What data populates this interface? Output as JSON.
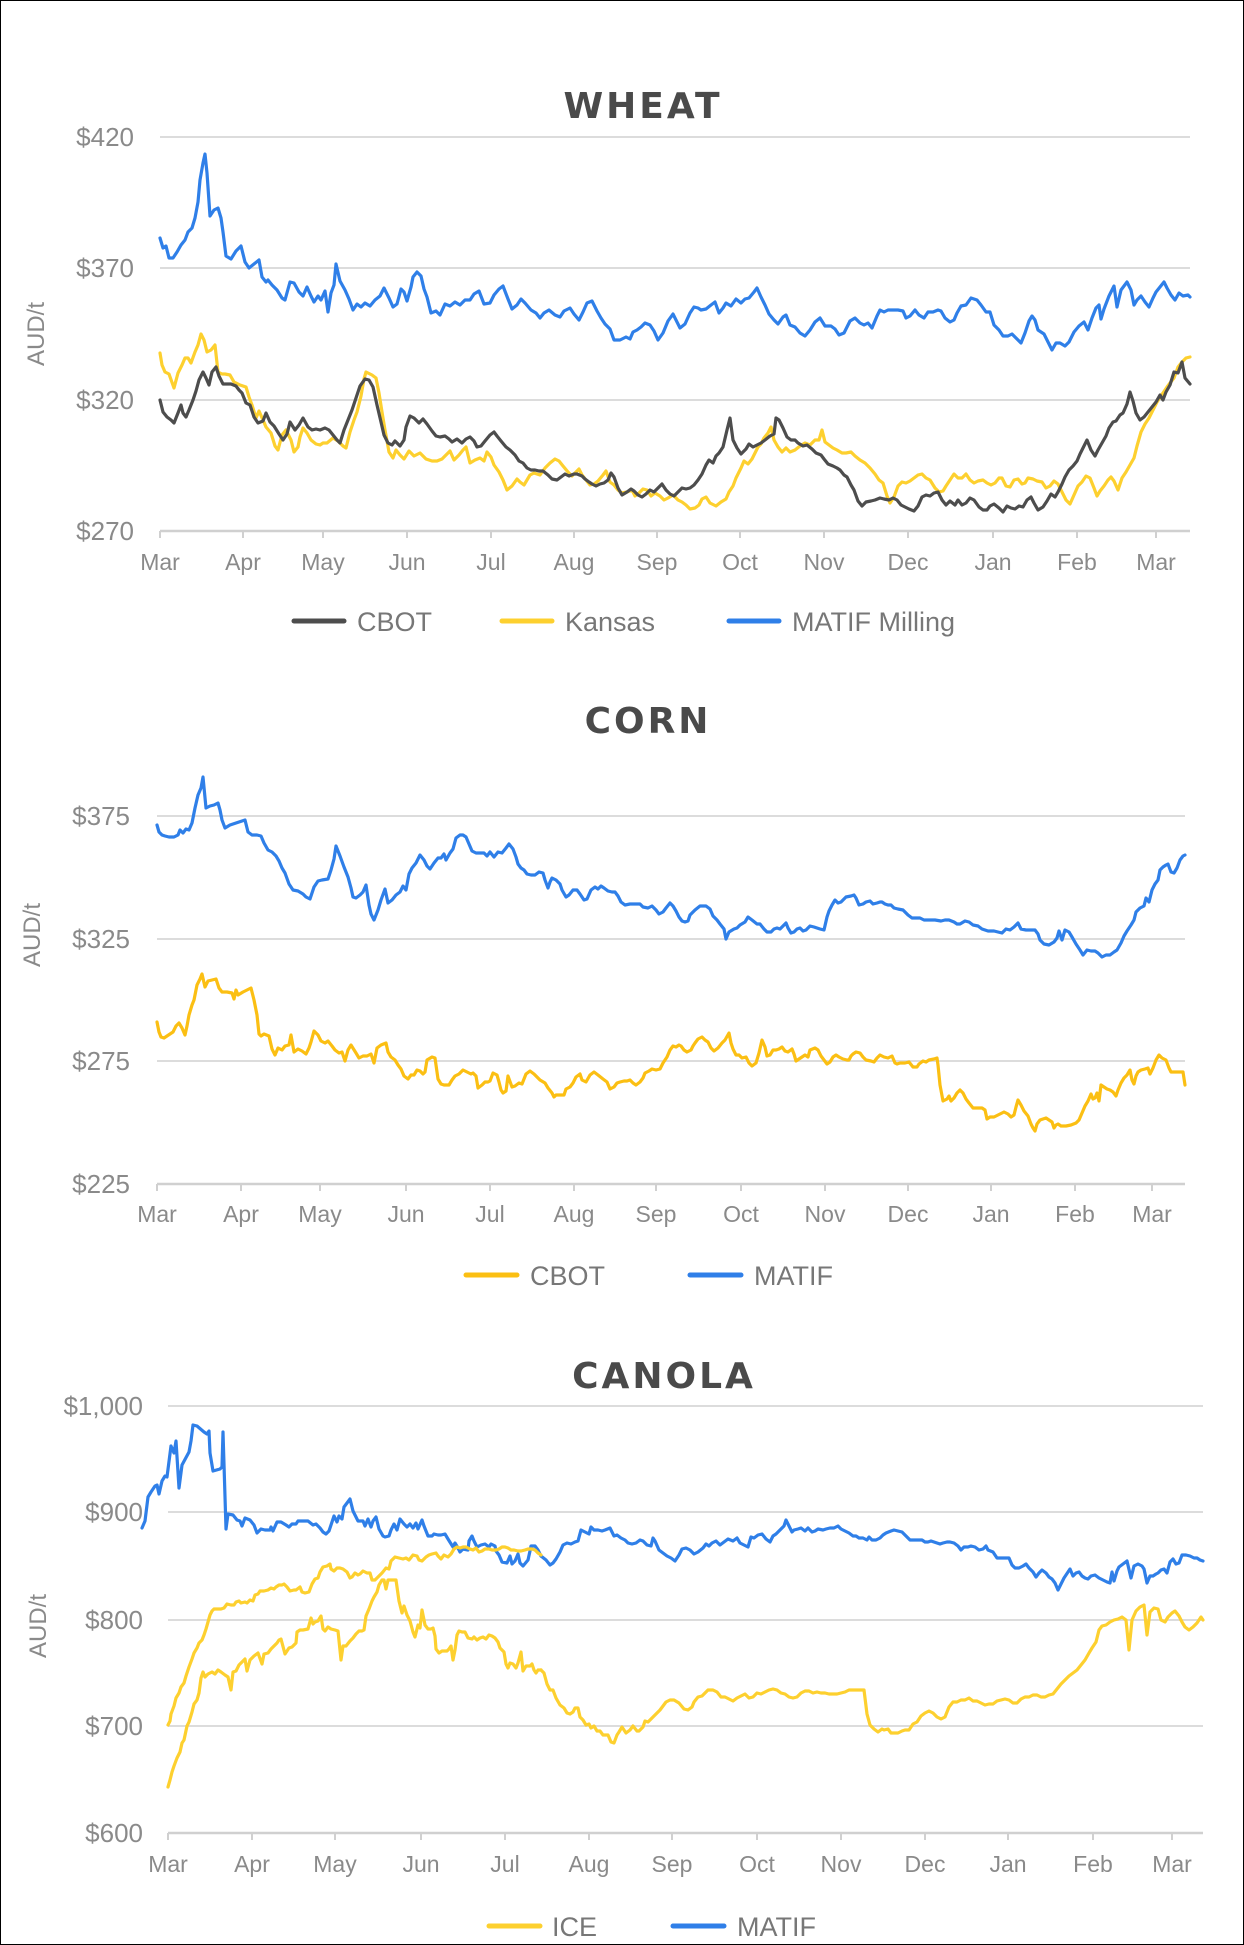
{
  "chart_data": [
    {
      "type": "line",
      "title": "WHEAT",
      "xlabel": "",
      "ylabel": "AUD/t",
      "ylim": [
        270,
        420
      ],
      "yticks": [
        "$420",
        "$370",
        "$320",
        "$270"
      ],
      "ytick_values": [
        420,
        370,
        320,
        270
      ],
      "grid": true,
      "legend_position": "bottom",
      "categories": [
        "Mar",
        "Apr",
        "May",
        "Jun",
        "Jul",
        "Aug",
        "Sep",
        "Oct",
        "Nov",
        "Dec",
        "Jan",
        "Feb",
        "Mar"
      ],
      "series": [
        {
          "name": "CBOT",
          "color": "#4d4d4d",
          "values": [
            321,
            312,
            330,
            322,
            302,
            301,
            305,
            304,
            334,
            306,
            304,
            300,
            296,
            298,
            296,
            291,
            289,
            282,
            292,
            305,
            301,
            296,
            286,
            282,
            280,
            281,
            278,
            284,
            303,
            312,
            317,
            314,
            324
          ]
        },
        {
          "name": "Kansas",
          "color": "#fdd02f",
          "values": [
            338,
            325,
            344,
            329,
            305,
            297,
            303,
            302,
            332,
            299,
            296,
            297,
            289,
            297,
            290,
            283,
            284,
            274,
            286,
            300,
            302,
            294,
            286,
            287,
            288,
            286,
            280,
            284,
            306,
            316,
            322,
            335,
            320
          ]
        },
        {
          "name": "MATIF Milling",
          "color": "#2f7fe8",
          "values": [
            382,
            378,
            413,
            378,
            371,
            356,
            372,
            354,
            370,
            349,
            356,
            362,
            352,
            349,
            338,
            345,
            332,
            337,
            344,
            336,
            348,
            340,
            330,
            334,
            332,
            334,
            329,
            322,
            318,
            333,
            345,
            343,
            337
          ]
        }
      ]
    },
    {
      "type": "line",
      "title": "CORN",
      "xlabel": "",
      "ylabel": "AUD/t",
      "ylim": [
        225,
        375
      ],
      "yticks": [
        "$375",
        "$325",
        "$275",
        "$225"
      ],
      "ytick_values": [
        375,
        325,
        275,
        225
      ],
      "grid": true,
      "legend_position": "bottom",
      "categories": [
        "Mar",
        "Apr",
        "May",
        "Jun",
        "Jul",
        "Aug",
        "Sep",
        "Oct",
        "Nov",
        "Dec",
        "Jan",
        "Feb",
        "Mar"
      ],
      "series": [
        {
          "name": "CBOT",
          "color": "#fbbf13",
          "values": [
            290,
            283,
            312,
            300,
            298,
            272,
            270,
            279,
            267,
            268,
            258,
            252,
            256,
            250,
            240,
            250,
            253,
            253,
            251,
            256,
            262,
            271,
            266,
            264,
            262,
            250,
            244,
            240,
            238,
            250,
            258,
            266,
            254
          ]
        },
        {
          "name": "MATIF",
          "color": "#2f7fe8",
          "values": [
            366,
            363,
            384,
            370,
            360,
            343,
            333,
            358,
            330,
            320,
            350,
            365,
            358,
            345,
            340,
            333,
            325,
            330,
            328,
            336,
            338,
            336,
            334,
            332,
            330,
            326,
            322,
            317,
            318,
            335,
            345,
            350,
            347
          ]
        }
      ]
    },
    {
      "type": "line",
      "title": "CANOLA",
      "xlabel": "",
      "ylabel": "AUD/t",
      "ylim": [
        600,
        1000
      ],
      "yticks": [
        "$1,000",
        "$900",
        "$800",
        "$700",
        "$600"
      ],
      "ytick_values": [
        1000,
        900,
        800,
        700,
        600
      ],
      "grid": true,
      "legend_position": "bottom",
      "categories": [
        "Mar",
        "Apr",
        "May",
        "Jun",
        "Jul",
        "Aug",
        "Sep",
        "Oct",
        "Nov",
        "Dec",
        "Jan",
        "Feb",
        "Mar"
      ],
      "series": [
        {
          "name": "ICE",
          "color": "#fdd02f",
          "values": [
            645,
            700,
            768,
            762,
            795,
            805,
            815,
            812,
            848,
            800,
            785,
            780,
            748,
            730,
            690,
            685,
            670,
            685,
            690,
            710,
            705,
            710,
            668,
            680,
            690,
            700,
            695,
            710,
            722,
            780,
            775,
            780,
            760
          ]
        },
        {
          "name": "MATIF",
          "color": "#2f7fe8",
          "values": [
            858,
            900,
            945,
            970,
            920,
            870,
            862,
            868,
            870,
            912,
            868,
            862,
            858,
            840,
            836,
            832,
            825,
            835,
            845,
            855,
            860,
            848,
            850,
            840,
            838,
            828,
            810,
            818,
            822,
            840,
            832,
            860,
            840
          ]
        }
      ]
    }
  ],
  "charts": [
    {
      "title": "WHEAT",
      "ylabel": "AUD/t",
      "yticks": [
        "$420",
        "$370",
        "$320",
        "$270"
      ],
      "xticks": [
        "Mar",
        "Apr",
        "May",
        "Jun",
        "Jul",
        "Aug",
        "Sep",
        "Oct",
        "Nov",
        "Dec",
        "Jan",
        "Feb",
        "Mar"
      ],
      "legend": [
        "CBOT",
        "Kansas",
        "MATIF Milling"
      ]
    },
    {
      "title": "CORN",
      "ylabel": "AUD/t",
      "yticks": [
        "$375",
        "$325",
        "$275",
        "$225"
      ],
      "xticks": [
        "Mar",
        "Apr",
        "May",
        "Jun",
        "Jul",
        "Aug",
        "Sep",
        "Oct",
        "Nov",
        "Dec",
        "Jan",
        "Feb",
        "Mar"
      ],
      "legend": [
        "CBOT",
        "MATIF"
      ]
    },
    {
      "title": "CANOLA",
      "ylabel": "AUD/t",
      "yticks": [
        "$1,000",
        "$900",
        "$800",
        "$700",
        "$600"
      ],
      "xticks": [
        "Mar",
        "Apr",
        "May",
        "Jun",
        "Jul",
        "Aug",
        "Sep",
        "Oct",
        "Nov",
        "Dec",
        "Jan",
        "Feb",
        "Mar"
      ],
      "legend": [
        "ICE",
        "MATIF"
      ]
    }
  ],
  "colors": {
    "blue": "#2f7fe8",
    "yellow": "#fdd02f",
    "corn_yellow": "#fbbf13",
    "dark": "#4d4d4d",
    "grid": "#dcdcdc"
  }
}
